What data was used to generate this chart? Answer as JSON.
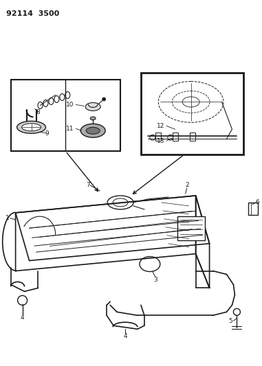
{
  "title": "92114 3500",
  "background_color": "#ffffff",
  "line_color": "#1a1a1a",
  "figsize": [
    3.81,
    5.33
  ],
  "dpi": 100
}
